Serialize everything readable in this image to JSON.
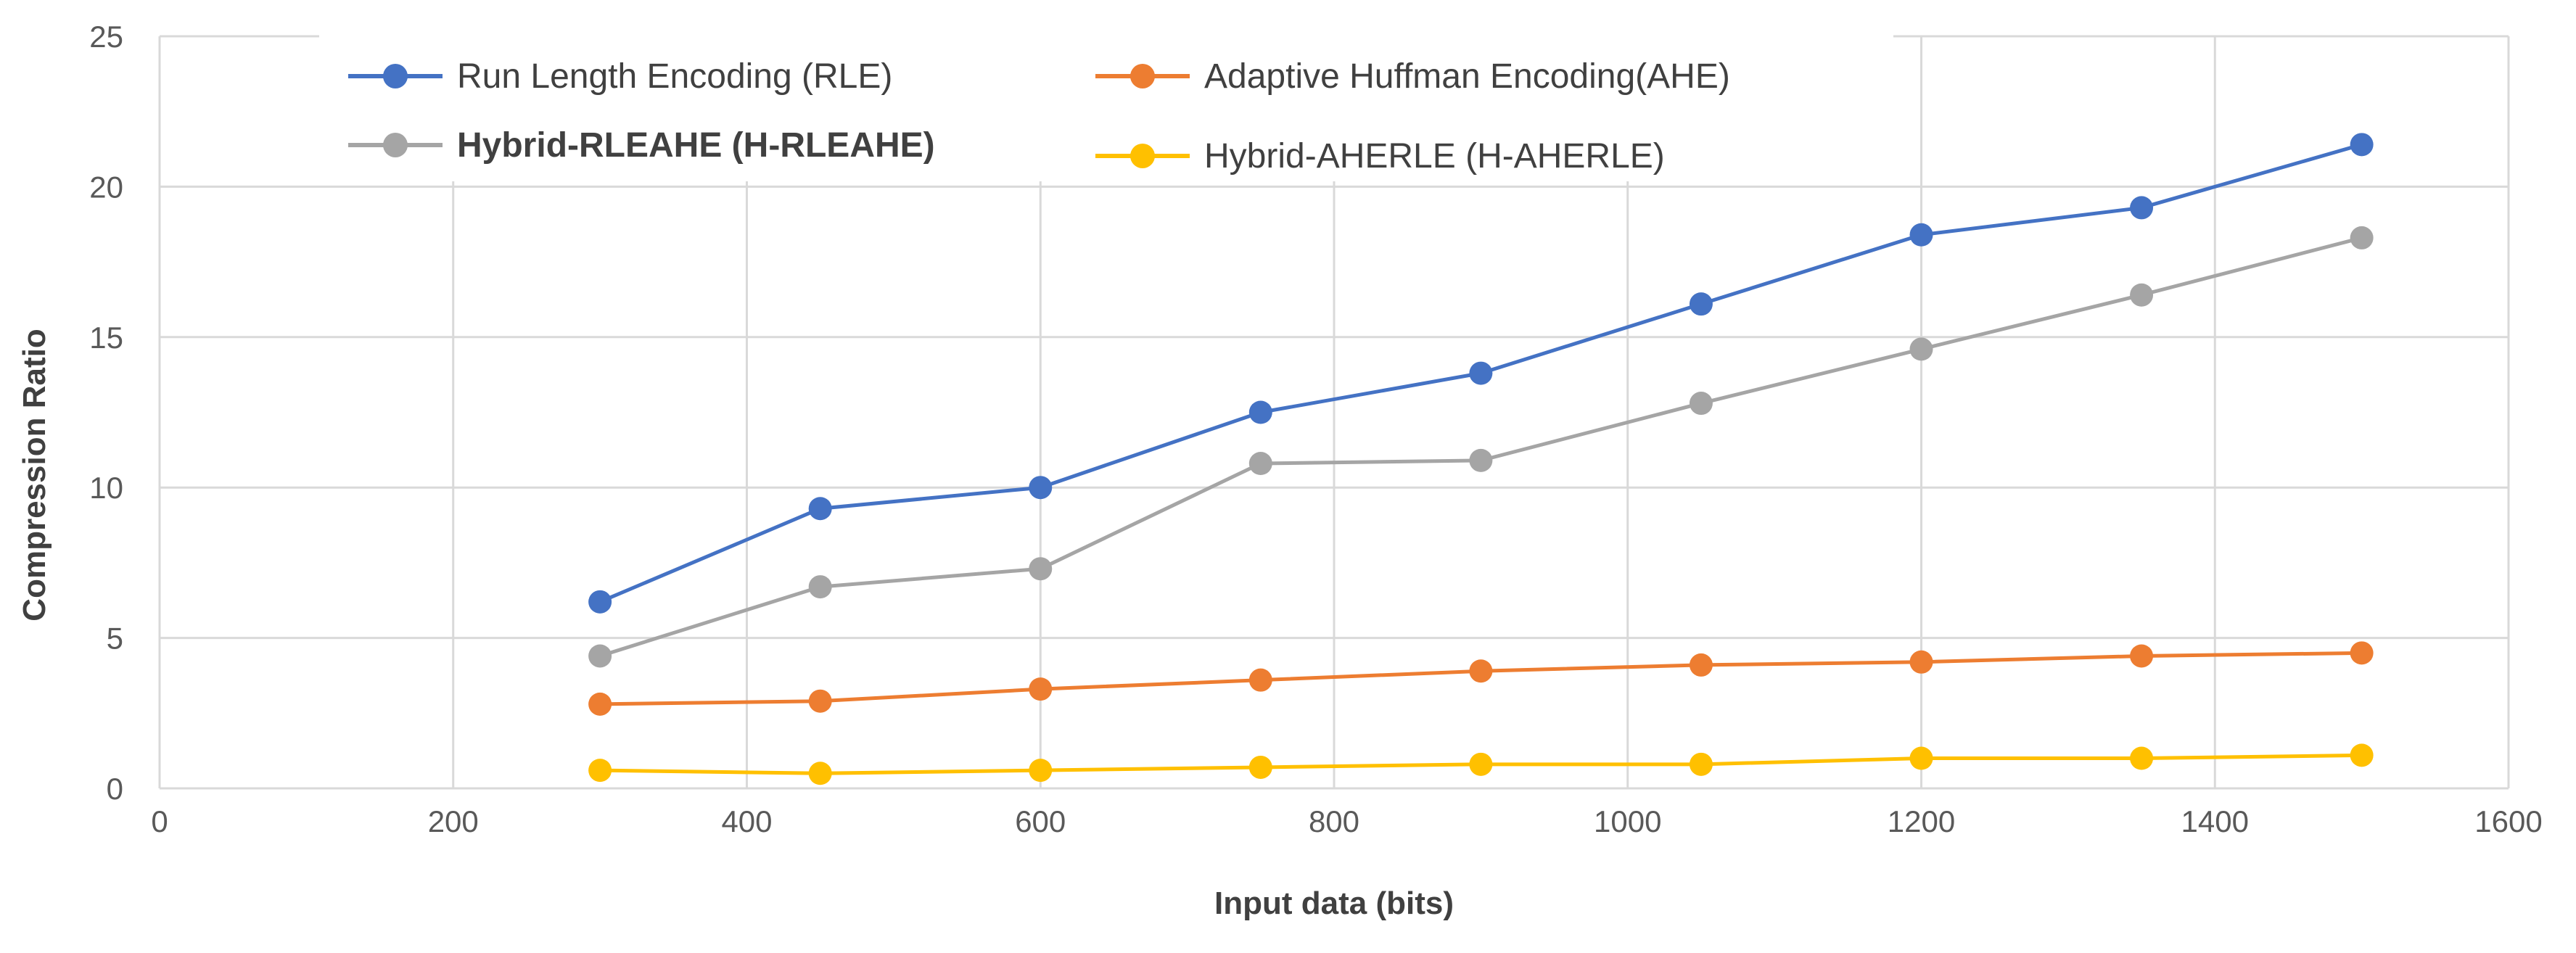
{
  "chart_data": {
    "type": "line",
    "title": "",
    "xlabel": "Input data (bits)",
    "ylabel": "Compression Ratio",
    "xlim": [
      0,
      1600
    ],
    "ylim": [
      0,
      25
    ],
    "x_ticks": [
      "0",
      "200",
      "400",
      "600",
      "800",
      "1000",
      "1200",
      "1400",
      "1600"
    ],
    "y_ticks": [
      "0",
      "5",
      "10",
      "15",
      "20",
      "25"
    ],
    "grid": true,
    "legend_position": "top",
    "x": [
      300,
      450,
      600,
      750,
      900,
      1050,
      1200,
      1350,
      1500
    ],
    "series": [
      {
        "name": "Run Length Encoding (RLE)",
        "color": "#4472C4",
        "values": [
          6.2,
          9.3,
          10.0,
          12.5,
          13.8,
          16.1,
          18.4,
          19.3,
          21.4
        ]
      },
      {
        "name": "Adaptive Huffman Encoding(AHE)",
        "color": "#ED7D31",
        "values": [
          2.8,
          2.9,
          3.3,
          3.6,
          3.9,
          4.1,
          4.2,
          4.4,
          4.5
        ]
      },
      {
        "name": "Hybrid-RLEAHE (H-RLEAHE)",
        "color": "#A5A5A5",
        "values": [
          4.4,
          6.7,
          7.3,
          10.8,
          10.9,
          12.8,
          14.6,
          16.4,
          18.3
        ]
      },
      {
        "name": "Hybrid-AHERLE (H-AHERLE)",
        "color": "#FFC000",
        "values": [
          0.6,
          0.5,
          0.6,
          0.7,
          0.8,
          0.8,
          1.0,
          1.0,
          1.1
        ]
      }
    ]
  }
}
